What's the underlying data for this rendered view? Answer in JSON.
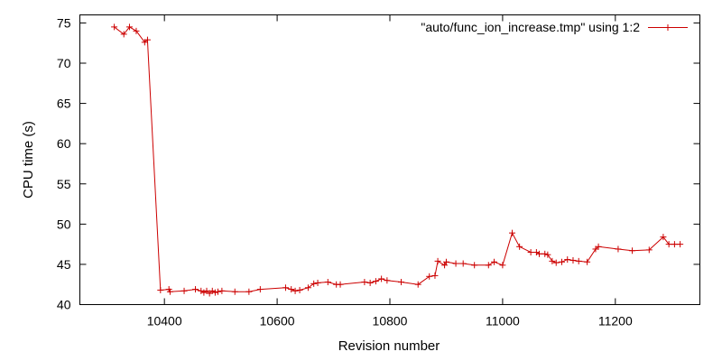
{
  "chart_data": {
    "type": "line",
    "xlabel": "Revision number",
    "ylabel": "CPU time (s)",
    "xlim": [
      10250,
      11350
    ],
    "ylim": [
      40,
      76
    ],
    "xticks": [
      10400,
      10600,
      10800,
      11000,
      11200
    ],
    "yticks": [
      40,
      45,
      50,
      55,
      60,
      65,
      70,
      75
    ],
    "xtick_labels": [
      "10400",
      "10600",
      "10800",
      "11000",
      "11200"
    ],
    "ytick_labels": [
      "40",
      "45",
      "50",
      "55",
      "60",
      "65",
      "70",
      "75"
    ],
    "legend_position": "top-right",
    "grid": false,
    "series": [
      {
        "name": "\"auto/func_ion_increase.tmp\" using 1:2",
        "color": "#cc0000",
        "marker": "plus",
        "points": [
          [
            10311,
            74.5
          ],
          [
            10328,
            73.6
          ],
          [
            10338,
            74.5
          ],
          [
            10350,
            74.0
          ],
          [
            10365,
            72.6
          ],
          [
            10370,
            72.9
          ],
          [
            10393,
            41.8
          ],
          [
            10408,
            41.9
          ],
          [
            10410,
            41.6
          ],
          [
            10435,
            41.7
          ],
          [
            10455,
            41.9
          ],
          [
            10465,
            41.7
          ],
          [
            10470,
            41.5
          ],
          [
            10475,
            41.7
          ],
          [
            10480,
            41.4
          ],
          [
            10485,
            41.7
          ],
          [
            10490,
            41.5
          ],
          [
            10495,
            41.6
          ],
          [
            10502,
            41.7
          ],
          [
            10525,
            41.6
          ],
          [
            10550,
            41.6
          ],
          [
            10570,
            41.9
          ],
          [
            10615,
            42.1
          ],
          [
            10625,
            41.9
          ],
          [
            10632,
            41.7
          ],
          [
            10640,
            41.8
          ],
          [
            10655,
            42.1
          ],
          [
            10665,
            42.6
          ],
          [
            10672,
            42.7
          ],
          [
            10690,
            42.8
          ],
          [
            10705,
            42.5
          ],
          [
            10712,
            42.5
          ],
          [
            10755,
            42.8
          ],
          [
            10765,
            42.7
          ],
          [
            10775,
            42.9
          ],
          [
            10785,
            43.2
          ],
          [
            10795,
            43.0
          ],
          [
            10820,
            42.8
          ],
          [
            10850,
            42.5
          ],
          [
            10870,
            43.5
          ],
          [
            10880,
            43.6
          ],
          [
            10885,
            45.4
          ],
          [
            10897,
            44.9
          ],
          [
            10900,
            45.3
          ],
          [
            10917,
            45.1
          ],
          [
            10930,
            45.1
          ],
          [
            10950,
            44.9
          ],
          [
            10975,
            44.9
          ],
          [
            10985,
            45.3
          ],
          [
            11000,
            44.9
          ],
          [
            11017,
            48.9
          ],
          [
            11030,
            47.2
          ],
          [
            11050,
            46.5
          ],
          [
            11060,
            46.5
          ],
          [
            11065,
            46.3
          ],
          [
            11075,
            46.3
          ],
          [
            11080,
            46.2
          ],
          [
            11088,
            45.4
          ],
          [
            11095,
            45.2
          ],
          [
            11105,
            45.3
          ],
          [
            11115,
            45.6
          ],
          [
            11125,
            45.5
          ],
          [
            11135,
            45.4
          ],
          [
            11150,
            45.3
          ],
          [
            11165,
            46.9
          ],
          [
            11170,
            47.2
          ],
          [
            11205,
            46.9
          ],
          [
            11230,
            46.7
          ],
          [
            11260,
            46.8
          ],
          [
            11285,
            48.4
          ],
          [
            11295,
            47.5
          ],
          [
            11305,
            47.5
          ],
          [
            11315,
            47.5
          ]
        ]
      }
    ]
  }
}
